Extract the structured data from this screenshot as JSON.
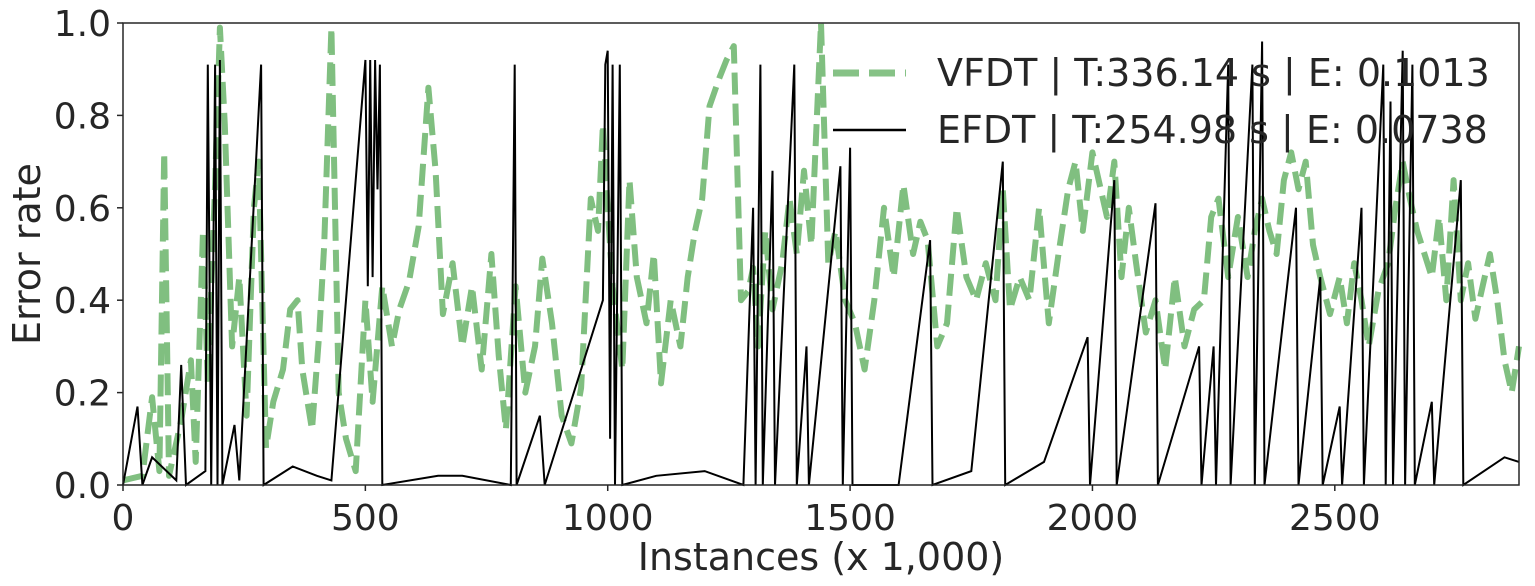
{
  "chart_data": {
    "type": "line",
    "xlabel": "Instances (x 1,000)",
    "ylabel": "Error rate",
    "xlim": [
      0,
      2880
    ],
    "ylim": [
      0,
      1.0
    ],
    "x_ticks": [
      0,
      500,
      1000,
      1500,
      2000,
      2500
    ],
    "x_tick_labels": [
      "0",
      "500",
      "1000",
      "1500",
      "2000",
      "2500"
    ],
    "y_ticks": [
      0.0,
      0.2,
      0.4,
      0.6,
      0.8,
      1.0
    ],
    "y_tick_labels": [
      "0.0",
      "0.2",
      "0.4",
      "0.6",
      "0.8",
      "1.0"
    ],
    "grid": false,
    "legend_position": "top-right",
    "series": [
      {
        "name": "VFDT | T:336.14 s | E: 0.1013",
        "color": "#80bf80",
        "style": "dashed",
        "points": [
          [
            0,
            0.01
          ],
          [
            40,
            0.02
          ],
          [
            60,
            0.19
          ],
          [
            75,
            0.03
          ],
          [
            85,
            0.72
          ],
          [
            95,
            0.02
          ],
          [
            120,
            0.14
          ],
          [
            140,
            0.27
          ],
          [
            150,
            0.05
          ],
          [
            165,
            0.55
          ],
          [
            175,
            0.22
          ],
          [
            190,
            0.65
          ],
          [
            200,
            0.99
          ],
          [
            210,
            0.78
          ],
          [
            225,
            0.3
          ],
          [
            240,
            0.45
          ],
          [
            255,
            0.15
          ],
          [
            270,
            0.6
          ],
          [
            280,
            0.7
          ],
          [
            295,
            0.08
          ],
          [
            310,
            0.18
          ],
          [
            330,
            0.25
          ],
          [
            345,
            0.38
          ],
          [
            360,
            0.4
          ],
          [
            370,
            0.25
          ],
          [
            390,
            0.12
          ],
          [
            405,
            0.33
          ],
          [
            415,
            0.52
          ],
          [
            430,
            0.99
          ],
          [
            445,
            0.2
          ],
          [
            460,
            0.1
          ],
          [
            480,
            0.03
          ],
          [
            500,
            0.4
          ],
          [
            515,
            0.18
          ],
          [
            535,
            0.43
          ],
          [
            555,
            0.3
          ],
          [
            570,
            0.38
          ],
          [
            590,
            0.44
          ],
          [
            610,
            0.56
          ],
          [
            630,
            0.86
          ],
          [
            645,
            0.68
          ],
          [
            660,
            0.37
          ],
          [
            680,
            0.48
          ],
          [
            700,
            0.3
          ],
          [
            720,
            0.43
          ],
          [
            740,
            0.25
          ],
          [
            760,
            0.5
          ],
          [
            775,
            0.28
          ],
          [
            790,
            0.12
          ],
          [
            810,
            0.43
          ],
          [
            830,
            0.2
          ],
          [
            850,
            0.3
          ],
          [
            865,
            0.49
          ],
          [
            885,
            0.35
          ],
          [
            905,
            0.15
          ],
          [
            925,
            0.09
          ],
          [
            945,
            0.21
          ],
          [
            965,
            0.62
          ],
          [
            980,
            0.55
          ],
          [
            990,
            0.78
          ],
          [
            1000,
            0.6
          ],
          [
            1010,
            0.43
          ],
          [
            1030,
            0.25
          ],
          [
            1045,
            0.66
          ],
          [
            1060,
            0.45
          ],
          [
            1080,
            0.35
          ],
          [
            1095,
            0.5
          ],
          [
            1110,
            0.22
          ],
          [
            1130,
            0.4
          ],
          [
            1150,
            0.3
          ],
          [
            1165,
            0.45
          ],
          [
            1180,
            0.55
          ],
          [
            1195,
            0.62
          ],
          [
            1210,
            0.82
          ],
          [
            1230,
            0.88
          ],
          [
            1245,
            0.92
          ],
          [
            1260,
            0.95
          ],
          [
            1275,
            0.4
          ],
          [
            1290,
            0.42
          ],
          [
            1300,
            0.47
          ],
          [
            1310,
            0.3
          ],
          [
            1325,
            0.55
          ],
          [
            1340,
            0.38
          ],
          [
            1360,
            0.48
          ],
          [
            1375,
            0.62
          ],
          [
            1390,
            0.5
          ],
          [
            1405,
            0.68
          ],
          [
            1420,
            0.52
          ],
          [
            1440,
            1.0
          ],
          [
            1455,
            0.48
          ],
          [
            1470,
            0.55
          ],
          [
            1490,
            0.4
          ],
          [
            1510,
            0.35
          ],
          [
            1530,
            0.25
          ],
          [
            1550,
            0.4
          ],
          [
            1570,
            0.6
          ],
          [
            1590,
            0.45
          ],
          [
            1610,
            0.65
          ],
          [
            1630,
            0.5
          ],
          [
            1645,
            0.57
          ],
          [
            1660,
            0.53
          ],
          [
            1680,
            0.3
          ],
          [
            1700,
            0.35
          ],
          [
            1720,
            0.6
          ],
          [
            1740,
            0.45
          ],
          [
            1760,
            0.4
          ],
          [
            1780,
            0.48
          ],
          [
            1800,
            0.4
          ],
          [
            1815,
            0.64
          ],
          [
            1830,
            0.38
          ],
          [
            1850,
            0.45
          ],
          [
            1870,
            0.4
          ],
          [
            1890,
            0.6
          ],
          [
            1910,
            0.35
          ],
          [
            1930,
            0.5
          ],
          [
            1950,
            0.64
          ],
          [
            1965,
            0.7
          ],
          [
            1980,
            0.55
          ],
          [
            2000,
            0.72
          ],
          [
            2015,
            0.65
          ],
          [
            2030,
            0.58
          ],
          [
            2045,
            0.7
          ],
          [
            2060,
            0.45
          ],
          [
            2075,
            0.6
          ],
          [
            2090,
            0.48
          ],
          [
            2110,
            0.33
          ],
          [
            2130,
            0.4
          ],
          [
            2150,
            0.25
          ],
          [
            2170,
            0.45
          ],
          [
            2190,
            0.3
          ],
          [
            2210,
            0.38
          ],
          [
            2230,
            0.4
          ],
          [
            2245,
            0.58
          ],
          [
            2260,
            0.62
          ],
          [
            2280,
            0.45
          ],
          [
            2300,
            0.58
          ],
          [
            2320,
            0.45
          ],
          [
            2335,
            0.55
          ],
          [
            2350,
            0.62
          ],
          [
            2365,
            0.55
          ],
          [
            2380,
            0.5
          ],
          [
            2395,
            0.66
          ],
          [
            2410,
            0.72
          ],
          [
            2425,
            0.64
          ],
          [
            2440,
            0.7
          ],
          [
            2455,
            0.52
          ],
          [
            2470,
            0.45
          ],
          [
            2490,
            0.37
          ],
          [
            2510,
            0.45
          ],
          [
            2525,
            0.35
          ],
          [
            2540,
            0.48
          ],
          [
            2555,
            0.4
          ],
          [
            2570,
            0.3
          ],
          [
            2590,
            0.42
          ],
          [
            2610,
            0.48
          ],
          [
            2625,
            0.6
          ],
          [
            2640,
            0.7
          ],
          [
            2655,
            0.62
          ],
          [
            2670,
            0.55
          ],
          [
            2685,
            0.5
          ],
          [
            2700,
            0.45
          ],
          [
            2715,
            0.58
          ],
          [
            2730,
            0.4
          ],
          [
            2745,
            0.66
          ],
          [
            2760,
            0.4
          ],
          [
            2775,
            0.48
          ],
          [
            2790,
            0.36
          ],
          [
            2805,
            0.43
          ],
          [
            2820,
            0.5
          ],
          [
            2835,
            0.4
          ],
          [
            2850,
            0.27
          ],
          [
            2865,
            0.2
          ],
          [
            2880,
            0.3
          ]
        ]
      },
      {
        "name": "EFDT | T:254.98 s | E: 0.0738",
        "color": "#000000",
        "style": "solid",
        "points": [
          [
            0,
            0.0
          ],
          [
            30,
            0.17
          ],
          [
            40,
            0.0
          ],
          [
            60,
            0.06
          ],
          [
            110,
            0.01
          ],
          [
            120,
            0.26
          ],
          [
            130,
            0.0
          ],
          [
            170,
            0.03
          ],
          [
            175,
            0.91
          ],
          [
            182,
            0.0
          ],
          [
            190,
            0.91
          ],
          [
            195,
            0.0
          ],
          [
            200,
            0.92
          ],
          [
            205,
            0.0
          ],
          [
            230,
            0.13
          ],
          [
            240,
            0.01
          ],
          [
            285,
            0.91
          ],
          [
            290,
            0.0
          ],
          [
            350,
            0.04
          ],
          [
            400,
            0.02
          ],
          [
            430,
            0.01
          ],
          [
            500,
            0.92
          ],
          [
            505,
            0.43
          ],
          [
            510,
            0.92
          ],
          [
            515,
            0.45
          ],
          [
            520,
            0.92
          ],
          [
            525,
            0.64
          ],
          [
            530,
            0.91
          ],
          [
            535,
            0.0
          ],
          [
            650,
            0.02
          ],
          [
            700,
            0.02
          ],
          [
            800,
            0.0
          ],
          [
            808,
            0.91
          ],
          [
            812,
            0.0
          ],
          [
            860,
            0.15
          ],
          [
            870,
            0.0
          ],
          [
            990,
            0.4
          ],
          [
            995,
            0.91
          ],
          [
            1000,
            0.94
          ],
          [
            1005,
            0.1
          ],
          [
            1010,
            0.91
          ],
          [
            1015,
            0.0
          ],
          [
            1025,
            0.91
          ],
          [
            1030,
            0.0
          ],
          [
            1100,
            0.02
          ],
          [
            1200,
            0.03
          ],
          [
            1280,
            0.0
          ],
          [
            1300,
            0.6
          ],
          [
            1305,
            0.0
          ],
          [
            1315,
            0.91
          ],
          [
            1320,
            0.0
          ],
          [
            1340,
            0.68
          ],
          [
            1345,
            0.0
          ],
          [
            1385,
            0.91
          ],
          [
            1390,
            0.0
          ],
          [
            1410,
            0.3
          ],
          [
            1415,
            0.0
          ],
          [
            1480,
            0.69
          ],
          [
            1485,
            0.0
          ],
          [
            1500,
            0.73
          ],
          [
            1505,
            0.0
          ],
          [
            1600,
            0.0
          ],
          [
            1665,
            0.53
          ],
          [
            1670,
            0.0
          ],
          [
            1750,
            0.03
          ],
          [
            1815,
            0.7
          ],
          [
            1820,
            0.0
          ],
          [
            1900,
            0.05
          ],
          [
            1990,
            0.32
          ],
          [
            1995,
            0.0
          ],
          [
            2045,
            0.66
          ],
          [
            2050,
            0.0
          ],
          [
            2130,
            0.61
          ],
          [
            2135,
            0.0
          ],
          [
            2220,
            0.3
          ],
          [
            2225,
            0.0
          ],
          [
            2250,
            0.3
          ],
          [
            2255,
            0.0
          ],
          [
            2280,
            0.91
          ],
          [
            2285,
            0.0
          ],
          [
            2330,
            0.91
          ],
          [
            2335,
            0.0
          ],
          [
            2350,
            0.96
          ],
          [
            2355,
            0.0
          ],
          [
            2420,
            0.6
          ],
          [
            2425,
            0.0
          ],
          [
            2470,
            0.45
          ],
          [
            2475,
            0.0
          ],
          [
            2510,
            0.17
          ],
          [
            2515,
            0.0
          ],
          [
            2555,
            0.6
          ],
          [
            2560,
            0.0
          ],
          [
            2600,
            0.91
          ],
          [
            2605,
            0.0
          ],
          [
            2615,
            0.83
          ],
          [
            2620,
            0.0
          ],
          [
            2640,
            0.94
          ],
          [
            2645,
            0.0
          ],
          [
            2660,
            0.91
          ],
          [
            2665,
            0.0
          ],
          [
            2700,
            0.18
          ],
          [
            2705,
            0.0
          ],
          [
            2760,
            0.66
          ],
          [
            2765,
            0.0
          ],
          [
            2850,
            0.06
          ],
          [
            2880,
            0.05
          ]
        ]
      }
    ]
  }
}
